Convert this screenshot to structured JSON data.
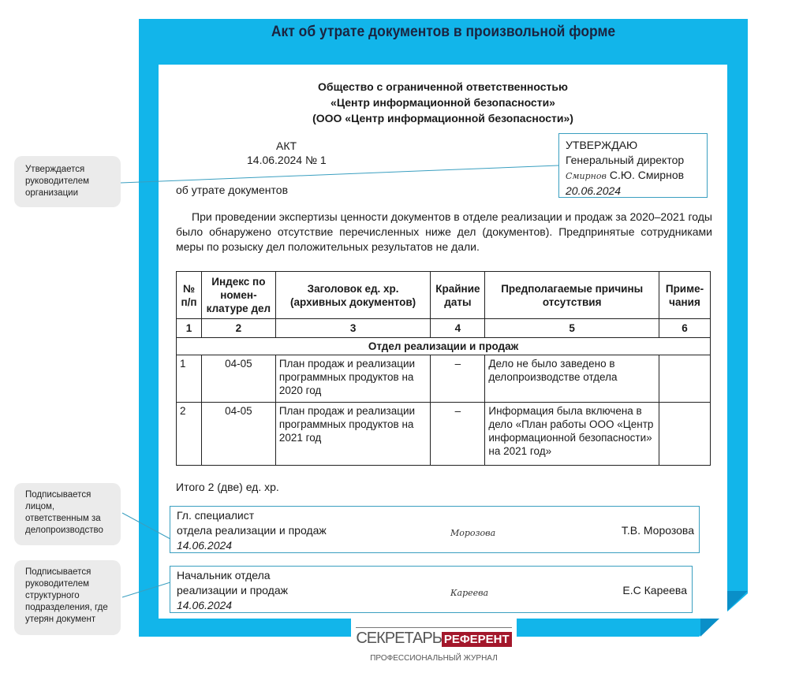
{
  "title": "Акт об утрате документов в произвольной форме",
  "org": {
    "line1": "Общество с ограниченной ответственностью",
    "line2": "«Центр информационной безопасности»",
    "line3": "(ООО «Центр информационной безопасности»)"
  },
  "act": {
    "label": "АКТ",
    "date_number": "14.06.2024 № 1",
    "subject": "об утрате документов"
  },
  "approval": {
    "label": "УТВЕРЖДАЮ",
    "position": "Генеральный директор",
    "signature": "Смирнов",
    "name": "С.Ю. Смирнов",
    "date": "20.06.2024"
  },
  "body_text": "При проведении экспертизы ценности документов в отделе реализации и продаж за 2020–2021 годы было обнаружено отсутствие перечисленных ниже дел (документов). Предпринятые сотрудниками меры по розыску дел положительных результатов не дали.",
  "table": {
    "headers": [
      "№ п/п",
      "Индекс по номен­клатуре дел",
      "Заголовок ед. хр. (архивных документов)",
      "Крайние даты",
      "Предполагаемые причины отсутствия",
      "Приме­чания"
    ],
    "numbers": [
      "1",
      "2",
      "3",
      "4",
      "5",
      "6"
    ],
    "section": "Отдел реализации и продаж",
    "rows": [
      [
        "1",
        "04-05",
        "План продаж и реализации программных продуктов на 2020 год",
        "–",
        "Дело не было заведено в делопроизводстве отдела",
        ""
      ],
      [
        "2",
        "04-05",
        "План продаж и реализации программных продуктов на 2021 год",
        "–",
        "Информация была включена в дело «План работы ООО «Центр информационной безопасности» на 2021 год»",
        ""
      ]
    ]
  },
  "total": "Итого 2 (две) ед. хр.",
  "signers": [
    {
      "line1": "Гл. специалист",
      "line2": "отдела реализации и продаж",
      "date": "14.06.2024",
      "signature": "Морозова",
      "name": "Т.В. Морозова"
    },
    {
      "line1": "Начальник отдела",
      "line2": "реализации и продаж",
      "date": "14.06.2024",
      "signature": "Кареева",
      "name": "Е.С Кареева"
    }
  ],
  "callouts": [
    "Утверждается руководителем организации",
    "Подписывается лицом, ответственным за делопроизводство",
    "Подписывается руководителем структурного подразделения, где утерян документ"
  ],
  "logo": {
    "part1": "СЕКРЕТАРЬ",
    "part2": "РЕФЕРЕНТ",
    "subtitle": "ПРОФЕССИОНАЛЬНЫЙ ЖУРНАЛ"
  },
  "colors": {
    "frame": "#12b5ea",
    "accent_line": "#3a9fc0",
    "logo_red": "#a3172b"
  }
}
